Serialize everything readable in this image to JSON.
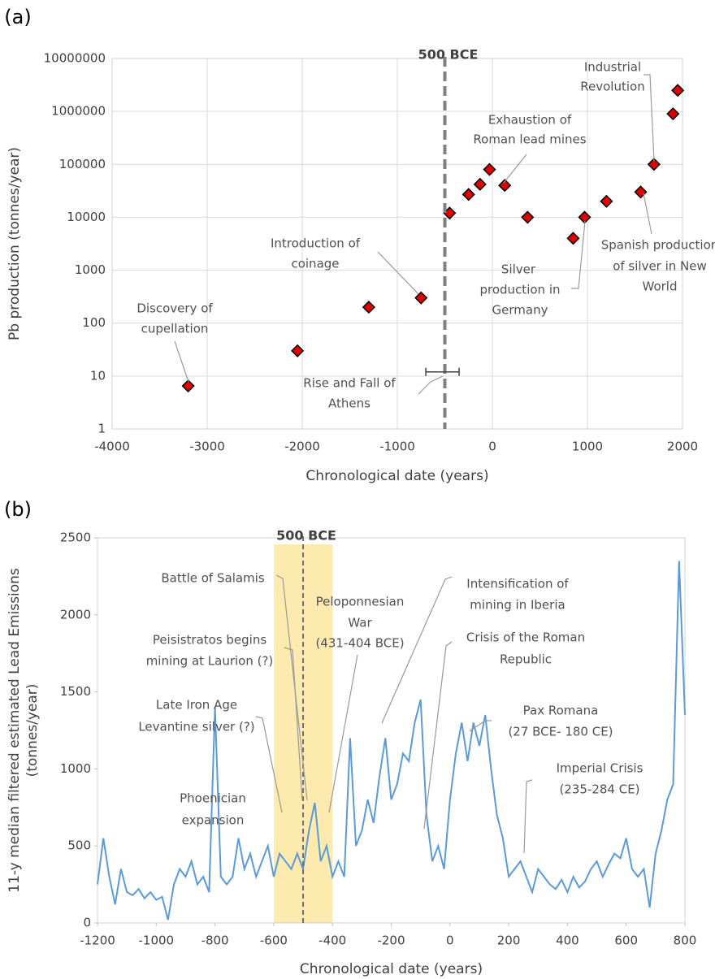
{
  "chart_data": [
    {
      "type": "scatter",
      "panel_label": "(a)",
      "x_label": "Chronological date (years)",
      "y_label": [
        "Pb production (tonnes/year)"
      ],
      "x": [
        -3200,
        -2050,
        -1300,
        -750,
        -450,
        -250,
        -130,
        -30,
        130,
        370,
        850,
        970,
        1200,
        1560,
        1700,
        1900,
        1950
      ],
      "values": [
        6.5,
        30,
        200,
        300,
        12000,
        27000,
        42000,
        80000,
        40000,
        10000,
        4000,
        10000,
        20000,
        30000,
        100000,
        900000,
        2500000
      ],
      "color": "#e00000",
      "marker_edge_color": "#000000",
      "xlim": [
        -4000,
        2000
      ],
      "xticks": [
        -4000,
        -3000,
        -2000,
        -1000,
        0,
        1000,
        2000
      ],
      "ylim": [
        1,
        10000000
      ],
      "yticks": [
        1,
        10,
        100,
        1000,
        10000,
        100000,
        1000000,
        10000000
      ],
      "log_y": true,
      "grid": true,
      "reference_line": {
        "x": -500,
        "label": "500 BCE"
      },
      "errorbar": {
        "low": -700,
        "high": -350,
        "y": 12
      },
      "annotations": [
        {
          "text": [
            "Discovery of",
            "cupellation"
          ]
        },
        {
          "text": [
            "Introduction of",
            "coinage"
          ]
        },
        {
          "text": [
            "Exhaustion of",
            "Roman lead mines"
          ]
        },
        {
          "text": [
            "Industrial",
            "Revolution"
          ]
        },
        {
          "text": [
            "Spanish production",
            "of silver in New",
            "World"
          ]
        },
        {
          "text": [
            "Silver",
            "production in",
            "Germany"
          ]
        },
        {
          "text": [
            "Rise and Fall of",
            "Athens"
          ]
        }
      ]
    },
    {
      "type": "line",
      "panel_label": "(b)",
      "x_label": "Chronological date (years)",
      "y_label": [
        "11-y median filtered estimated Lead Emissions",
        "(tonnes/year)"
      ],
      "x": [
        -1200,
        -1180,
        -1160,
        -1140,
        -1120,
        -1100,
        -1080,
        -1060,
        -1040,
        -1020,
        -1000,
        -980,
        -960,
        -940,
        -920,
        -900,
        -880,
        -860,
        -840,
        -820,
        -800,
        -780,
        -760,
        -740,
        -720,
        -700,
        -680,
        -660,
        -640,
        -620,
        -600,
        -580,
        -560,
        -540,
        -520,
        -500,
        -480,
        -460,
        -440,
        -420,
        -400,
        -380,
        -360,
        -340,
        -320,
        -300,
        -280,
        -260,
        -240,
        -220,
        -200,
        -180,
        -160,
        -140,
        -120,
        -100,
        -80,
        -60,
        -40,
        -20,
        0,
        20,
        40,
        60,
        80,
        100,
        120,
        140,
        160,
        180,
        200,
        220,
        240,
        260,
        280,
        300,
        320,
        340,
        360,
        380,
        400,
        420,
        440,
        460,
        480,
        500,
        520,
        540,
        560,
        580,
        600,
        620,
        640,
        660,
        680,
        700,
        720,
        740,
        760,
        780,
        800
      ],
      "values": [
        250,
        550,
        300,
        120,
        350,
        200,
        180,
        220,
        160,
        200,
        150,
        170,
        20,
        250,
        350,
        300,
        400,
        250,
        300,
        200,
        1400,
        300,
        250,
        300,
        550,
        350,
        450,
        300,
        400,
        500,
        300,
        450,
        400,
        350,
        450,
        350,
        600,
        780,
        400,
        500,
        300,
        400,
        300,
        1200,
        500,
        600,
        800,
        650,
        950,
        1200,
        800,
        900,
        1100,
        1050,
        1300,
        1450,
        700,
        400,
        500,
        350,
        800,
        1100,
        1300,
        1050,
        1300,
        1150,
        1350,
        1000,
        700,
        550,
        300,
        350,
        400,
        300,
        200,
        350,
        300,
        250,
        220,
        280,
        200,
        300,
        230,
        270,
        350,
        400,
        300,
        380,
        450,
        420,
        550,
        350,
        300,
        350,
        100,
        450,
        600,
        800,
        900,
        2350,
        1350
      ],
      "color": "#5b9bd5",
      "xlim": [
        -1200,
        800
      ],
      "xticks": [
        -1200,
        -1000,
        -800,
        -600,
        -400,
        -200,
        0,
        200,
        400,
        600,
        800
      ],
      "ylim": [
        0,
        2500
      ],
      "yticks": [
        0,
        500,
        1000,
        1500,
        2000,
        2500
      ],
      "log_y": false,
      "grid": false,
      "reference_line": {
        "x": -500,
        "label": "500 BCE"
      },
      "shaded_region": {
        "from": -600,
        "to": -400,
        "color": "#fbd86b"
      },
      "annotations": [
        {
          "text": [
            "Battle of Salamis"
          ]
        },
        {
          "text": [
            "Peisistratos begins",
            "mining at Laurion (?)"
          ]
        },
        {
          "text": [
            "Late Iron Age",
            "Levantine silver (?)"
          ]
        },
        {
          "text": [
            "Phoenician",
            "expansion"
          ]
        },
        {
          "text": [
            "Peloponnesian",
            "War",
            "(431-404 BCE)"
          ]
        },
        {
          "text": [
            "Intensification of",
            "mining in Iberia"
          ]
        },
        {
          "text": [
            "Crisis of the Roman",
            "Republic"
          ]
        },
        {
          "text": [
            "Pax Romana",
            "(27 BCE- 180 CE)"
          ]
        },
        {
          "text": [
            "Imperial Crisis",
            "(235-284 CE)"
          ]
        }
      ]
    }
  ]
}
